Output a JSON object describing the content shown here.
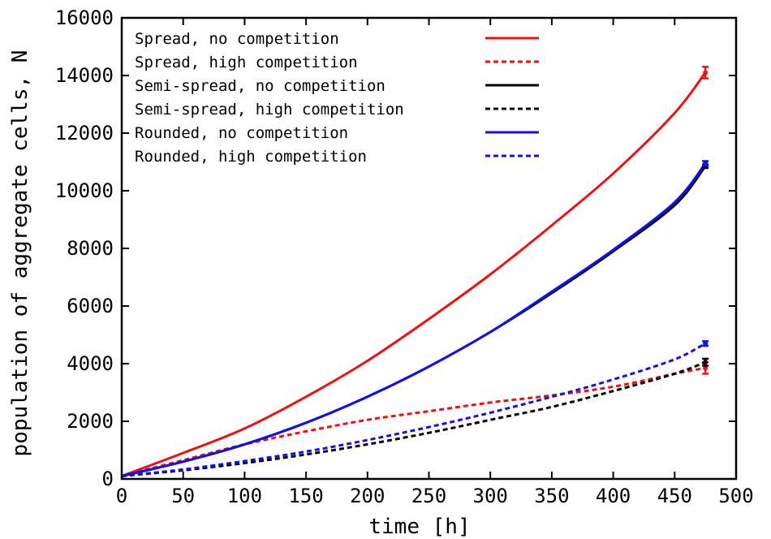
{
  "chart_data": {
    "type": "line",
    "title": "",
    "xlabel": "time [h]",
    "ylabel": "population of aggregate cells, N",
    "xlim": [
      0,
      500
    ],
    "ylim": [
      0,
      16000
    ],
    "x_ticks": [
      0,
      50,
      100,
      150,
      200,
      250,
      300,
      350,
      400,
      450,
      500
    ],
    "y_ticks": [
      0,
      2000,
      4000,
      6000,
      8000,
      10000,
      12000,
      14000,
      16000
    ],
    "grid": false,
    "legend_position": "top-left",
    "series": [
      {
        "name": "Spread, no competition",
        "color": "#ee1111",
        "dash": "solid",
        "x": [
          0,
          50,
          100,
          150,
          200,
          250,
          300,
          350,
          400,
          450,
          475
        ],
        "y": [
          100,
          900,
          1750,
          2850,
          4100,
          5550,
          7100,
          8800,
          10600,
          12700,
          14100
        ],
        "error_bar": {
          "x": 475,
          "y": 14100,
          "err": 200
        }
      },
      {
        "name": "Spread, high competition",
        "color": "#ee1111",
        "dash": "dashed",
        "x": [
          0,
          50,
          100,
          150,
          200,
          250,
          300,
          350,
          400,
          450,
          475
        ],
        "y": [
          100,
          650,
          1200,
          1650,
          2050,
          2350,
          2650,
          2900,
          3200,
          3650,
          3850
        ],
        "error_bar": {
          "x": 475,
          "y": 3850,
          "err": 200
        }
      },
      {
        "name": "Semi-spread, no competition",
        "color": "#000000",
        "dash": "solid",
        "x": [
          0,
          50,
          100,
          150,
          200,
          250,
          300,
          350,
          400,
          450,
          475
        ],
        "y": [
          100,
          600,
          1200,
          1950,
          2850,
          3900,
          5100,
          6450,
          7900,
          9500,
          10850
        ],
        "error_bar": {
          "x": 475,
          "y": 10850,
          "err": 60
        }
      },
      {
        "name": "Semi-spread, high competition",
        "color": "#000000",
        "dash": "dashed",
        "x": [
          0,
          50,
          100,
          150,
          200,
          250,
          300,
          350,
          400,
          450,
          475
        ],
        "y": [
          100,
          300,
          550,
          850,
          1200,
          1600,
          2050,
          2500,
          3050,
          3650,
          4050
        ],
        "error_bar": {
          "x": 475,
          "y": 4050,
          "err": 120
        }
      },
      {
        "name": "Rounded, no competition",
        "color": "#1111ee",
        "dash": "solid",
        "x": [
          0,
          50,
          100,
          150,
          200,
          250,
          300,
          350,
          400,
          450,
          475
        ],
        "y": [
          100,
          600,
          1200,
          1950,
          2850,
          3900,
          5100,
          6500,
          7950,
          9600,
          10950
        ],
        "error_bar": {
          "x": 475,
          "y": 10950,
          "err": 80
        }
      },
      {
        "name": "Rounded, high competition",
        "color": "#1111ee",
        "dash": "dashed",
        "x": [
          0,
          50,
          100,
          150,
          200,
          250,
          300,
          350,
          400,
          450,
          475
        ],
        "y": [
          100,
          330,
          620,
          950,
          1350,
          1800,
          2300,
          2850,
          3450,
          4150,
          4700
        ],
        "error_bar": {
          "x": 475,
          "y": 4700,
          "err": 80
        }
      }
    ]
  }
}
